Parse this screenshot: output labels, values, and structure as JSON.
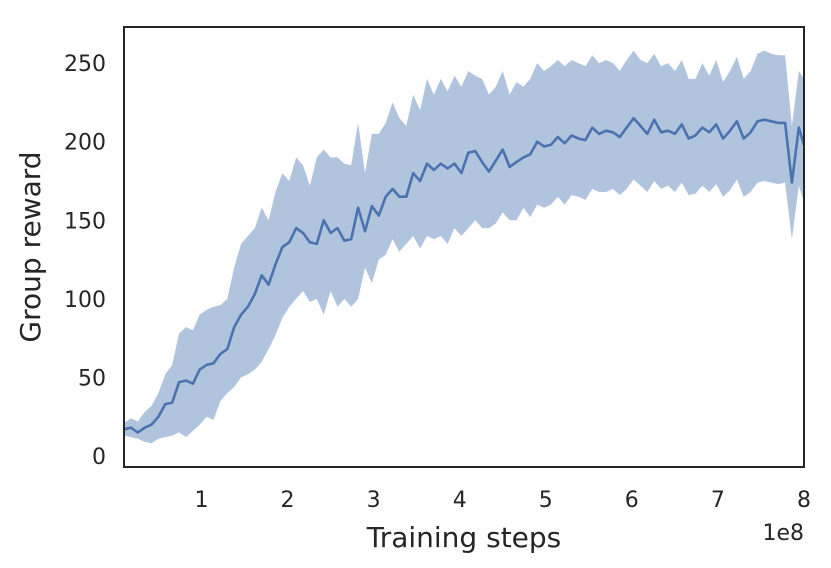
{
  "chart_data": {
    "type": "line",
    "title": "",
    "xlabel": "Training steps",
    "ylabel": "Group reward",
    "x_offset_text": "1e8",
    "xlim": [
      0.1,
      8.0
    ],
    "ylim": [
      -7,
      273
    ],
    "x_ticks": [
      1,
      2,
      3,
      4,
      5,
      6,
      7,
      8
    ],
    "x_tick_labels": [
      "1",
      "2",
      "3",
      "4",
      "5",
      "6",
      "7",
      "8"
    ],
    "y_ticks": [
      0,
      50,
      100,
      150,
      200,
      250
    ],
    "y_tick_labels": [
      "0",
      "50",
      "100",
      "150",
      "200",
      "250"
    ],
    "grid": false,
    "legend": "none",
    "colors": {
      "line": "#4c72b0",
      "band": "#b0c4de",
      "axes": "#262626"
    },
    "series": [
      {
        "x": [
          0.1,
          0.18,
          0.26,
          0.34,
          0.42,
          0.5,
          0.58,
          0.66,
          0.74,
          0.82,
          0.9,
          0.98,
          1.06,
          1.14,
          1.22,
          1.3,
          1.38,
          1.46,
          1.54,
          1.62,
          1.7,
          1.78,
          1.86,
          1.94,
          2.02,
          2.1,
          2.18,
          2.26,
          2.34,
          2.42,
          2.5,
          2.58,
          2.66,
          2.74,
          2.82,
          2.9,
          2.98,
          3.06,
          3.14,
          3.22,
          3.3,
          3.38,
          3.46,
          3.54,
          3.62,
          3.7,
          3.78,
          3.86,
          3.94,
          4.02,
          4.1,
          4.18,
          4.26,
          4.34,
          4.42,
          4.5,
          4.58,
          4.66,
          4.74,
          4.82,
          4.9,
          4.98,
          5.06,
          5.14,
          5.22,
          5.3,
          5.38,
          5.46,
          5.54,
          5.62,
          5.7,
          5.78,
          5.86,
          5.94,
          6.02,
          6.1,
          6.18,
          6.26,
          6.34,
          6.42,
          6.5,
          6.58,
          6.66,
          6.74,
          6.82,
          6.9,
          6.98,
          7.06,
          7.14,
          7.22,
          7.3,
          7.38,
          7.46,
          7.54,
          7.62,
          7.7,
          7.78,
          7.86,
          7.94,
          8.0
        ],
        "y": [
          17,
          18,
          15,
          18,
          20,
          25,
          33,
          34,
          47,
          48,
          46,
          55,
          58,
          59,
          65,
          68,
          82,
          90,
          95,
          103,
          115,
          109,
          122,
          133,
          136,
          145,
          142,
          136,
          135,
          150,
          142,
          145,
          137,
          138,
          158,
          143,
          159,
          153,
          165,
          170,
          165,
          165,
          180,
          175,
          186,
          182,
          186,
          183,
          186,
          180,
          193,
          194,
          187,
          181,
          188,
          195,
          184,
          187,
          190,
          192,
          200,
          197,
          198,
          203,
          199,
          204,
          202,
          201,
          209,
          205,
          207,
          206,
          203,
          209,
          215,
          210,
          205,
          214,
          206,
          207,
          205,
          211,
          202,
          204,
          209,
          206,
          211,
          202,
          207,
          213,
          202,
          206,
          213,
          214,
          213,
          212,
          212,
          174,
          209,
          198
        ],
        "lower": [
          13,
          12,
          11,
          9,
          8,
          11,
          12,
          13,
          15,
          12,
          16,
          20,
          25,
          23,
          35,
          40,
          44,
          50,
          52,
          55,
          60,
          68,
          77,
          88,
          95,
          100,
          105,
          98,
          100,
          90,
          105,
          95,
          100,
          95,
          100,
          120,
          110,
          125,
          128,
          138,
          130,
          135,
          140,
          132,
          140,
          138,
          140,
          135,
          145,
          140,
          145,
          150,
          145,
          145,
          148,
          155,
          150,
          150,
          158,
          152,
          160,
          158,
          160,
          165,
          160,
          166,
          165,
          163,
          170,
          168,
          168,
          170,
          166,
          170,
          176,
          172,
          168,
          175,
          170,
          172,
          168,
          174,
          166,
          167,
          172,
          168,
          173,
          165,
          169,
          176,
          165,
          168,
          174,
          175,
          174,
          173,
          174,
          138,
          172,
          162
        ],
        "upper": [
          21,
          24,
          22,
          28,
          32,
          40,
          52,
          58,
          78,
          82,
          80,
          90,
          93,
          95,
          96,
          100,
          120,
          135,
          140,
          145,
          158,
          150,
          168,
          180,
          175,
          190,
          185,
          172,
          190,
          195,
          190,
          190,
          186,
          185,
          212,
          180,
          205,
          205,
          212,
          225,
          215,
          210,
          230,
          220,
          240,
          230,
          240,
          232,
          242,
          235,
          245,
          242,
          240,
          230,
          235,
          245,
          230,
          238,
          235,
          240,
          250,
          245,
          248,
          252,
          248,
          252,
          250,
          248,
          255,
          250,
          252,
          250,
          245,
          252,
          258,
          252,
          250,
          256,
          248,
          250,
          245,
          252,
          240,
          240,
          250,
          242,
          252,
          238,
          245,
          254,
          240,
          245,
          256,
          258,
          256,
          255,
          255,
          210,
          245,
          240
        ]
      }
    ]
  }
}
